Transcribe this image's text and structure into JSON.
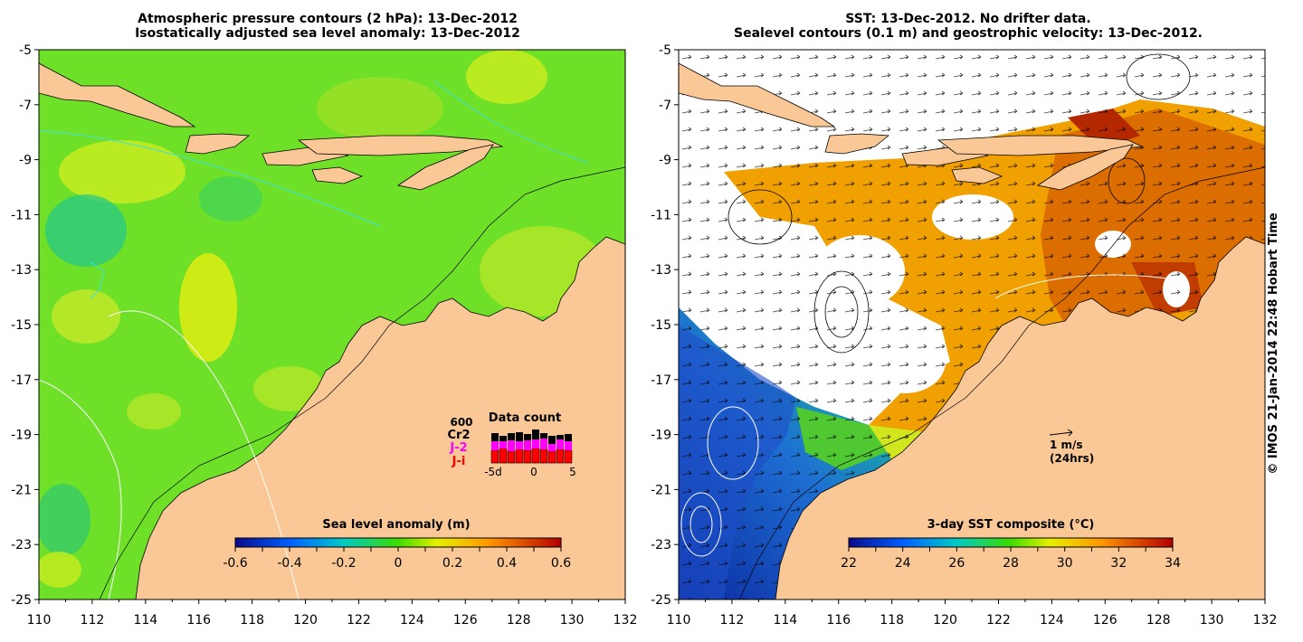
{
  "left_panel": {
    "title_line1": "Atmospheric pressure contours (2 hPa): 13-Dec-2012",
    "title_line2": "Isostatically adjusted sea level anomaly: 13-Dec-2012",
    "x_ticks": [
      "110",
      "112",
      "114",
      "116",
      "118",
      "120",
      "122",
      "124",
      "126",
      "128",
      "130",
      "132"
    ],
    "y_ticks": [
      "-5",
      "-7",
      "-9",
      "-11",
      "-13",
      "-15",
      "-17",
      "-19",
      "-21",
      "-23",
      "-25"
    ],
    "colorbar": {
      "label": "Sea level anomaly (m)",
      "ticks": [
        "-0.6",
        "-0.4",
        "-0.2",
        "0",
        "0.2",
        "0.4",
        "0.6"
      ]
    },
    "data_count": {
      "title": "Data count",
      "scale_label": "600",
      "series_labels": [
        "Cr2",
        "J-2",
        "J-i"
      ],
      "series_colors": [
        "#000000",
        "#ff00ff",
        "#ff0000"
      ],
      "x_ticks": [
        "-5d",
        "0",
        "5"
      ]
    }
  },
  "right_panel": {
    "title_line1": "SST: 13-Dec-2012. No drifter data.",
    "title_line2": "Sealevel contours (0.1 m) and geostrophic velocity: 13-Dec-2012.",
    "x_ticks": [
      "110",
      "112",
      "114",
      "116",
      "118",
      "120",
      "122",
      "124",
      "126",
      "128",
      "130",
      "132"
    ],
    "y_ticks": [
      "-5",
      "-7",
      "-9",
      "-11",
      "-13",
      "-15",
      "-17",
      "-19",
      "-21",
      "-23",
      "-25"
    ],
    "colorbar": {
      "label": "3-day SST composite (°C)",
      "ticks": [
        "22",
        "24",
        "26",
        "28",
        "30",
        "32",
        "34"
      ]
    },
    "velocity_scale": {
      "line1": "1 m/s",
      "line2": "(24hrs)"
    }
  },
  "credit": "© IMOS 21-Jan-2014 22:48 Hobart Time",
  "colors": {
    "land": "#f9c896",
    "ocean_green": "#6ee028",
    "sst_orange": "#f0a000",
    "sst_blue": "#1050d0"
  }
}
